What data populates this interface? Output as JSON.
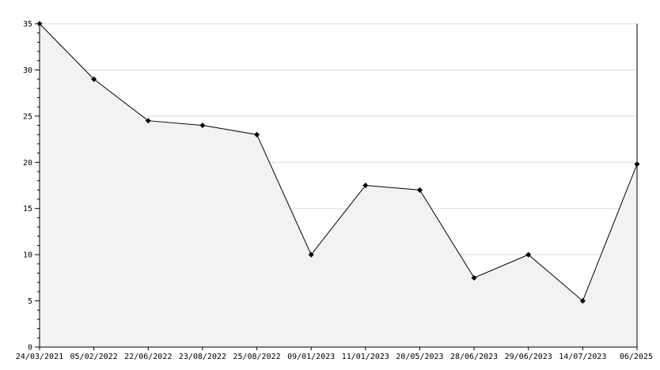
{
  "chart_data": {
    "type": "area",
    "title": "",
    "xlabel": "",
    "ylabel": "",
    "categories": [
      "24/03/2021",
      "05/02/2022",
      "22/06/2022",
      "23/08/2022",
      "25/08/2022",
      "09/01/2023",
      "11/01/2023",
      "20/05/2023",
      "28/06/2023",
      "29/06/2023",
      "14/07/2023",
      "06/2025"
    ],
    "series": [
      {
        "values": [
          35,
          29,
          24.5,
          24,
          23,
          10,
          17.5,
          17,
          7.5,
          10,
          5,
          19.8
        ]
      }
    ],
    "ylim": [
      0,
      35
    ],
    "yticks": [
      0,
      5,
      10,
      15,
      20,
      25,
      30,
      35
    ],
    "grid": true,
    "legend": "none",
    "colors": {
      "line": "#000000",
      "fill": "#f2f2f2",
      "grid": "#d9d9d9",
      "axis": "#000000"
    }
  }
}
